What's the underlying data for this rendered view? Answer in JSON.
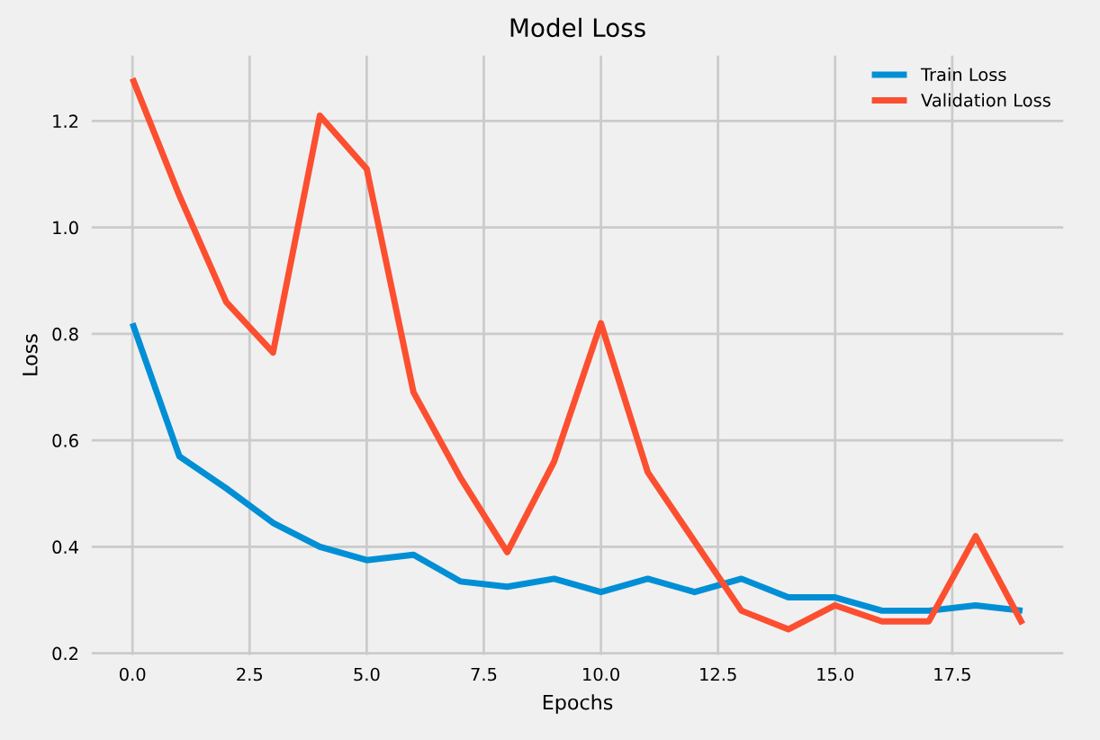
{
  "chart_data": {
    "type": "line",
    "title": "Model Loss",
    "xlabel": "Epochs",
    "ylabel": "Loss",
    "x": [
      0,
      1,
      2,
      3,
      4,
      5,
      6,
      7,
      8,
      9,
      10,
      11,
      12,
      13,
      14,
      15,
      16,
      17,
      18,
      19
    ],
    "series": [
      {
        "name": "Train Loss",
        "color": "#008fd5",
        "values": [
          0.82,
          0.57,
          0.51,
          0.445,
          0.4,
          0.375,
          0.385,
          0.335,
          0.325,
          0.34,
          0.315,
          0.34,
          0.315,
          0.34,
          0.305,
          0.305,
          0.28,
          0.28,
          0.29,
          0.28
        ]
      },
      {
        "name": "Validation Loss",
        "color": "#fc4f30",
        "values": [
          1.28,
          1.06,
          0.86,
          0.765,
          1.21,
          1.11,
          0.69,
          0.53,
          0.39,
          0.56,
          0.82,
          0.54,
          0.41,
          0.28,
          0.245,
          0.29,
          0.26,
          0.26,
          0.42,
          0.255
        ]
      }
    ],
    "xlim": [
      -0.95,
      19.95
    ],
    "ylim": [
      0.19,
      1.33
    ],
    "xticks": [
      {
        "value": 0,
        "label": "0.0"
      },
      {
        "value": 2.5,
        "label": "2.5"
      },
      {
        "value": 5,
        "label": "5.0"
      },
      {
        "value": 7.5,
        "label": "7.5"
      },
      {
        "value": 10,
        "label": "10.0"
      },
      {
        "value": 12.5,
        "label": "12.5"
      },
      {
        "value": 15,
        "label": "15.0"
      },
      {
        "value": 17.5,
        "label": "17.5"
      }
    ],
    "yticks": [
      0.2,
      0.4,
      0.6,
      0.8,
      {
        "value": 1.0,
        "label": "1.0"
      },
      1.2
    ],
    "grid": true,
    "legend": "top right",
    "line_style": "solid",
    "marker": "none"
  }
}
